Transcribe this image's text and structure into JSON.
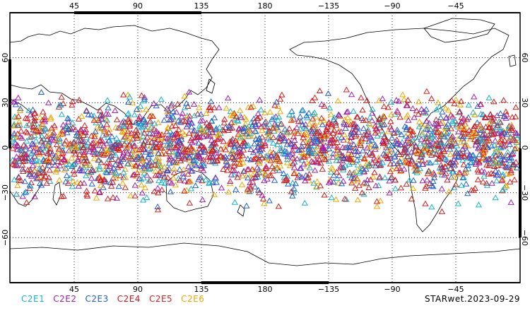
{
  "map": {
    "lon_labels": [
      "45",
      "90",
      "135",
      "180",
      "−135",
      "−90",
      "−45"
    ],
    "lat_labels": [
      "60",
      "30",
      "0",
      "−30",
      "−60"
    ],
    "lat_values": [
      60,
      30,
      0,
      -30,
      -60
    ],
    "lat_extent": [
      -90,
      90
    ],
    "lon_extent_note": "0 to 360 centered on 180",
    "grid": "dotted",
    "marker": "triangle-outline",
    "marker_lat_band": [
      -45,
      45
    ]
  },
  "legend": {
    "items": [
      {
        "label": "C2E1",
        "color": "#17b3c9"
      },
      {
        "label": "C2E2",
        "color": "#a020b0"
      },
      {
        "label": "C2E3",
        "color": "#2060d0"
      },
      {
        "label": "C2E4",
        "color": "#d01818"
      },
      {
        "label": "C2E5",
        "color": "#d82020"
      },
      {
        "label": "C2E6",
        "color": "#f0a800"
      }
    ]
  },
  "caption": "STARwet.2023-09-29"
}
